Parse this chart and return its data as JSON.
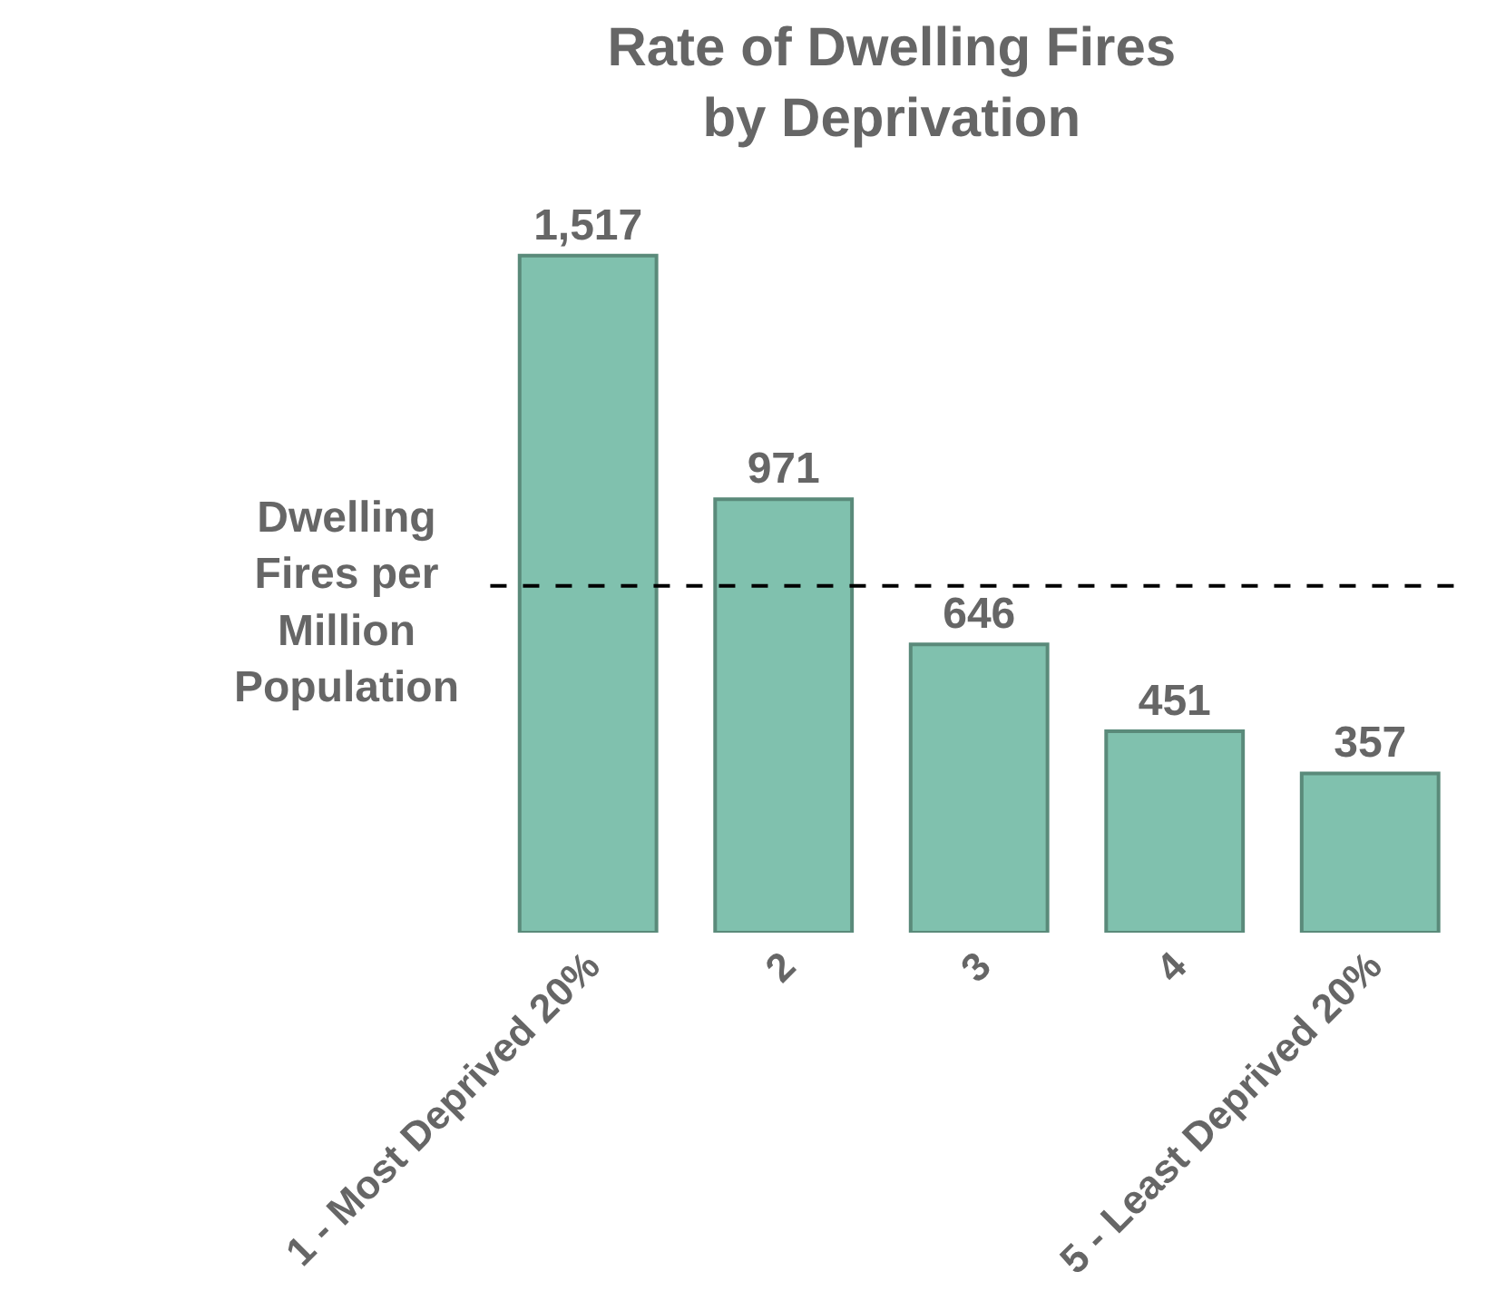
{
  "chart_data": {
    "type": "bar",
    "title": "Rate of Dwelling Fires\nby Deprivation",
    "ylabel": "Dwelling Fires per Million Population",
    "categories": [
      "1 - Most Deprived 20%",
      "2",
      "3",
      "4",
      "5 - Least Deprived 20%"
    ],
    "values": [
      1517,
      971,
      646,
      451,
      357
    ],
    "value_labels": [
      "1,517",
      "971",
      "646",
      "451",
      "357"
    ],
    "color": "#80c1ae",
    "ref_lines": [
      {
        "axis": "y",
        "value": 777,
        "color": "#000000",
        "line_style": "dashed"
      }
    ]
  }
}
